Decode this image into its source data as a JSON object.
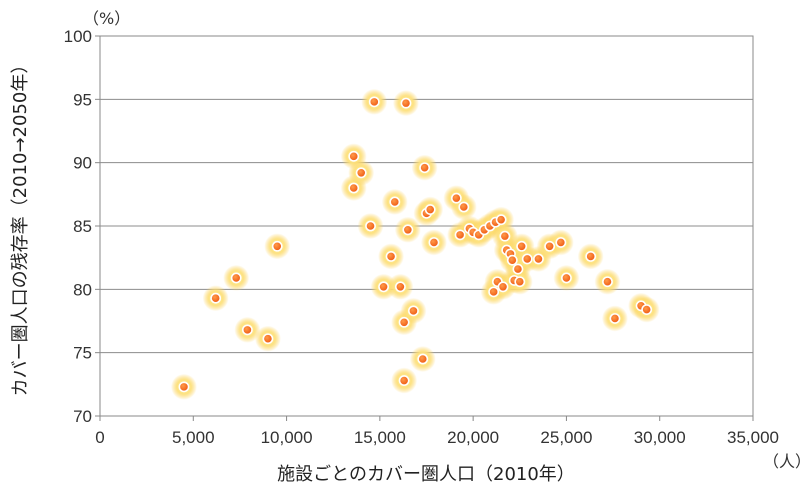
{
  "chart_data": {
    "type": "scatter",
    "xlabel": "施設ごとのカバー圏人口（2010年）",
    "ylabel": "カバー圏人口の残存率（2010→2050年）",
    "x_unit": "（人）",
    "y_unit": "（%）",
    "xlim": [
      0,
      35000
    ],
    "ylim": [
      70,
      100
    ],
    "x_ticks": [
      0,
      5000,
      10000,
      15000,
      20000,
      25000,
      30000,
      35000
    ],
    "x_tick_labels": [
      "0",
      "5,000",
      "10,000",
      "15,000",
      "20,000",
      "25,000",
      "30,000",
      "35,000"
    ],
    "y_ticks": [
      70,
      75,
      80,
      85,
      90,
      95,
      100
    ],
    "y_tick_labels": [
      "70",
      "75",
      "80",
      "85",
      "90",
      "95",
      "100"
    ],
    "grid": "horizontal",
    "marker_color": "#f26a21",
    "glow_color": "#fdd25a",
    "points": [
      {
        "x": 4500,
        "y": 72.3
      },
      {
        "x": 6200,
        "y": 79.3
      },
      {
        "x": 7300,
        "y": 80.9
      },
      {
        "x": 7900,
        "y": 76.8
      },
      {
        "x": 9000,
        "y": 76.1
      },
      {
        "x": 9500,
        "y": 83.4
      },
      {
        "x": 13600,
        "y": 90.5
      },
      {
        "x": 13600,
        "y": 88.0
      },
      {
        "x": 14000,
        "y": 89.2
      },
      {
        "x": 14500,
        "y": 85.0
      },
      {
        "x": 14700,
        "y": 94.8
      },
      {
        "x": 15200,
        "y": 80.2
      },
      {
        "x": 15600,
        "y": 82.6
      },
      {
        "x": 15800,
        "y": 86.9
      },
      {
        "x": 16100,
        "y": 80.2
      },
      {
        "x": 16300,
        "y": 72.8
      },
      {
        "x": 16300,
        "y": 77.4
      },
      {
        "x": 16400,
        "y": 94.7
      },
      {
        "x": 16500,
        "y": 84.7
      },
      {
        "x": 16800,
        "y": 78.3
      },
      {
        "x": 17300,
        "y": 74.5
      },
      {
        "x": 17400,
        "y": 89.6
      },
      {
        "x": 17500,
        "y": 86.0
      },
      {
        "x": 17700,
        "y": 86.3
      },
      {
        "x": 17900,
        "y": 83.7
      },
      {
        "x": 19100,
        "y": 87.2
      },
      {
        "x": 19300,
        "y": 84.3
      },
      {
        "x": 19500,
        "y": 86.5
      },
      {
        "x": 19800,
        "y": 84.8
      },
      {
        "x": 20000,
        "y": 84.5
      },
      {
        "x": 20300,
        "y": 84.3
      },
      {
        "x": 20600,
        "y": 84.7
      },
      {
        "x": 20900,
        "y": 85.0
      },
      {
        "x": 21100,
        "y": 79.8
      },
      {
        "x": 21200,
        "y": 85.3
      },
      {
        "x": 21300,
        "y": 80.6
      },
      {
        "x": 21500,
        "y": 85.5
      },
      {
        "x": 21600,
        "y": 80.2
      },
      {
        "x": 21700,
        "y": 84.2
      },
      {
        "x": 21800,
        "y": 83.1
      },
      {
        "x": 22000,
        "y": 82.8
      },
      {
        "x": 22100,
        "y": 82.3
      },
      {
        "x": 22200,
        "y": 80.7
      },
      {
        "x": 22400,
        "y": 81.6
      },
      {
        "x": 22500,
        "y": 80.6
      },
      {
        "x": 22600,
        "y": 83.4
      },
      {
        "x": 22900,
        "y": 82.4
      },
      {
        "x": 23500,
        "y": 82.4
      },
      {
        "x": 24100,
        "y": 83.4
      },
      {
        "x": 24700,
        "y": 83.7
      },
      {
        "x": 25000,
        "y": 80.9
      },
      {
        "x": 26300,
        "y": 82.6
      },
      {
        "x": 27200,
        "y": 80.6
      },
      {
        "x": 27600,
        "y": 77.7
      },
      {
        "x": 29000,
        "y": 78.7
      },
      {
        "x": 29300,
        "y": 78.4
      }
    ]
  }
}
